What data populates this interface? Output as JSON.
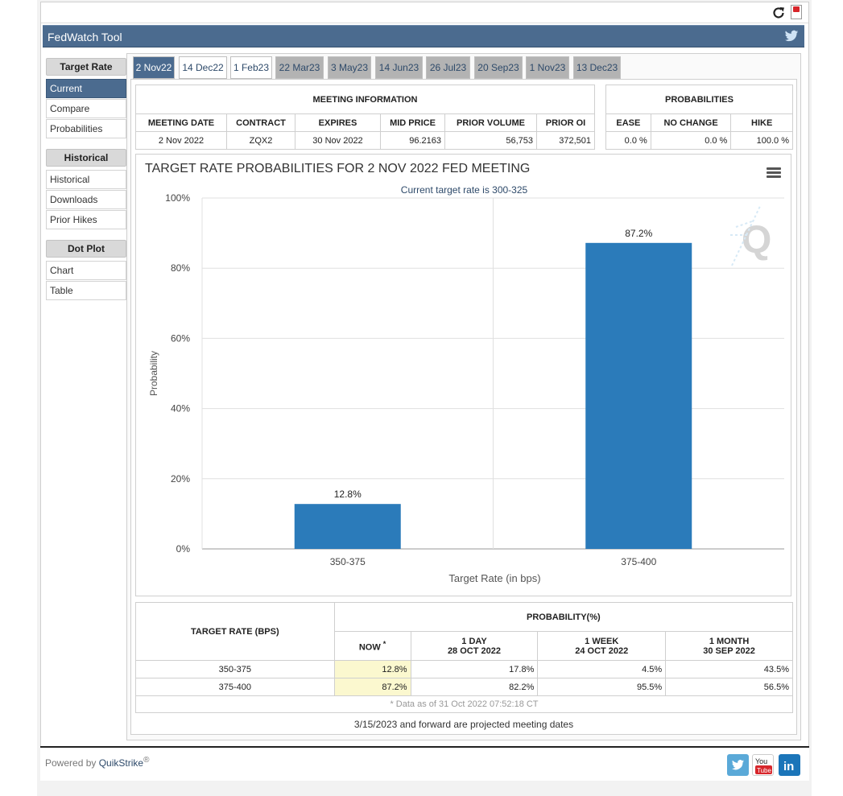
{
  "app": {
    "title": "FedWatch Tool"
  },
  "sidebar": {
    "groups": [
      {
        "heading": "Target Rate",
        "items": [
          "Current",
          "Compare",
          "Probabilities"
        ]
      },
      {
        "heading": "Historical",
        "items": [
          "Historical",
          "Downloads",
          "Prior Hikes"
        ]
      },
      {
        "heading": "Dot Plot",
        "items": [
          "Chart",
          "Table"
        ]
      }
    ],
    "active_item": "Current"
  },
  "tabs": [
    "2 Nov22",
    "14 Dec22",
    "1 Feb23",
    "22 Mar23",
    "3 May23",
    "14 Jun23",
    "26 Jul23",
    "20 Sep23",
    "1 Nov23",
    "13 Dec23"
  ],
  "active_tab": "2 Nov22",
  "meeting_info": {
    "heading": "MEETING INFORMATION",
    "columns": [
      "MEETING DATE",
      "CONTRACT",
      "EXPIRES",
      "MID PRICE",
      "PRIOR VOLUME",
      "PRIOR OI"
    ],
    "row": [
      "2 Nov 2022",
      "ZQX2",
      "30 Nov 2022",
      "96.2163",
      "56,753",
      "372,501"
    ]
  },
  "probabilities": {
    "heading": "PROBABILITIES",
    "columns": [
      "EASE",
      "NO CHANGE",
      "HIKE"
    ],
    "row": [
      "0.0 %",
      "0.0 %",
      "100.0 %"
    ]
  },
  "chart_data": {
    "type": "bar",
    "title": "TARGET RATE PROBABILITIES FOR 2 NOV 2022 FED MEETING",
    "subtitle": "Current target rate is 300-325",
    "xlabel": "Target Rate (in bps)",
    "ylabel": "Probability",
    "categories": [
      "350-375",
      "375-400"
    ],
    "values": [
      12.8,
      87.2
    ],
    "data_labels": [
      "12.8%",
      "87.2%"
    ],
    "ylim": [
      0,
      100
    ],
    "yticks": [
      "0%",
      "20%",
      "40%",
      "60%",
      "80%",
      "100%"
    ],
    "ytick_values": [
      0,
      20,
      40,
      60,
      80,
      100
    ],
    "bar_color": "#2b7bba",
    "grid": true
  },
  "prob_table": {
    "target_header": "TARGET RATE (BPS)",
    "prob_header": "PROBABILITY(%)",
    "now_header": "NOW",
    "now_mark": "*",
    "periods": [
      {
        "label": "1 DAY",
        "date": "28 OCT 2022"
      },
      {
        "label": "1 WEEK",
        "date": "24 OCT 2022"
      },
      {
        "label": "1 MONTH",
        "date": "30 SEP 2022"
      }
    ],
    "rows": [
      {
        "rate": "350-375",
        "now": "12.8%",
        "d1": "17.8%",
        "w1": "4.5%",
        "m1": "43.5%"
      },
      {
        "rate": "375-400",
        "now": "87.2%",
        "d1": "82.2%",
        "w1": "95.5%",
        "m1": "56.5%"
      }
    ],
    "footnote": "* Data as of 31 Oct 2022 07:52:18 CT"
  },
  "projected_note": "3/15/2023 and forward are projected meeting dates",
  "footer": {
    "powered_by": "Powered by",
    "brand": "QuikStrike",
    "reg": "®"
  },
  "colors": {
    "header": "#4b6b8f",
    "accent": "#2b7bba",
    "highlight": "#fbf8cf"
  },
  "icons": [
    "refresh-icon",
    "pdf-icon",
    "twitter-icon",
    "menu-icon",
    "youtube-icon",
    "linkedin-icon",
    "quikstrike-logo"
  ]
}
